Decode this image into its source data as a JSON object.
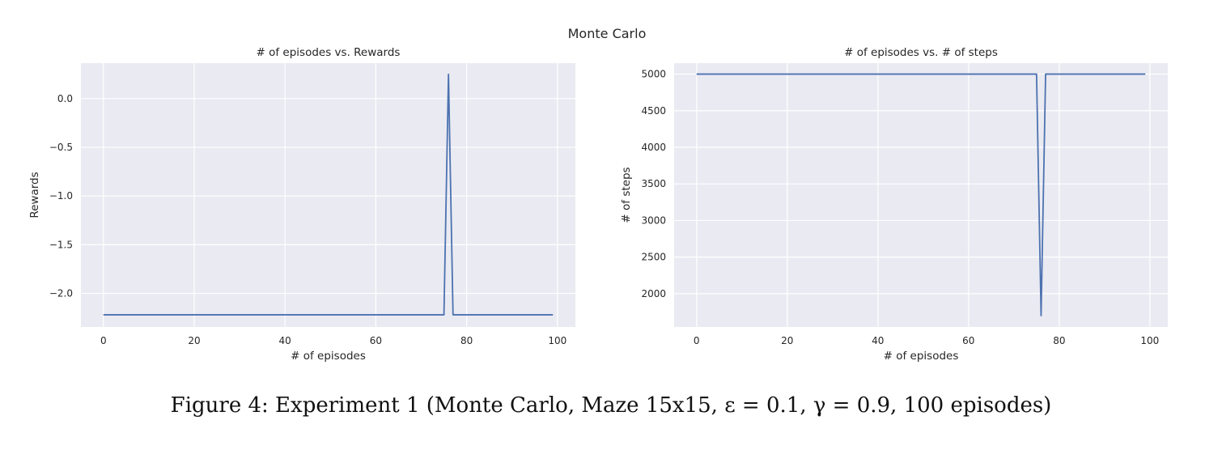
{
  "figure": {
    "suptitle": "Monte Carlo",
    "caption": "Figure 4: Experiment 1 (Monte Carlo, Maze 15x15, ε = 0.1, γ = 0.9, 100 episodes)"
  },
  "chart_data": [
    {
      "type": "line",
      "title": "# of episodes vs. Rewards",
      "xlabel": "# of episodes",
      "ylabel": "Rewards",
      "xlim": [
        -4.95,
        103.95
      ],
      "ylim": [
        -2.345,
        0.365
      ],
      "xticks": [
        0,
        20,
        40,
        60,
        80,
        100
      ],
      "yticks": [
        0.0,
        -0.5,
        -1.0,
        -1.5,
        -2.0
      ],
      "xtick_labels": [
        "0",
        "20",
        "40",
        "60",
        "80",
        "100"
      ],
      "ytick_labels": [
        "0.0",
        "−0.5",
        "−1.0",
        "−1.5",
        "−2.0"
      ],
      "grid": true,
      "color": "#4c72b0",
      "series": [
        {
          "x": [
            0,
            75,
            76,
            77,
            99
          ],
          "y": [
            -2.22,
            -2.22,
            0.25,
            -2.22,
            -2.22
          ]
        }
      ]
    },
    {
      "type": "line",
      "title": "# of episodes vs. # of steps",
      "xlabel": "# of episodes",
      "ylabel": "# of steps",
      "xlim": [
        -4.95,
        103.95
      ],
      "ylim": [
        1545,
        5150
      ],
      "xticks": [
        0,
        20,
        40,
        60,
        80,
        100
      ],
      "yticks": [
        5000,
        4500,
        4000,
        3500,
        3000,
        2500,
        2000
      ],
      "xtick_labels": [
        "0",
        "20",
        "40",
        "60",
        "80",
        "100"
      ],
      "ytick_labels": [
        "5000",
        "4500",
        "4000",
        "3500",
        "3000",
        "2500",
        "2000"
      ],
      "grid": true,
      "color": "#4c72b0",
      "series": [
        {
          "x": [
            0,
            75,
            76,
            77,
            99
          ],
          "y": [
            5000,
            5000,
            1700,
            5000,
            5000
          ]
        }
      ]
    }
  ]
}
